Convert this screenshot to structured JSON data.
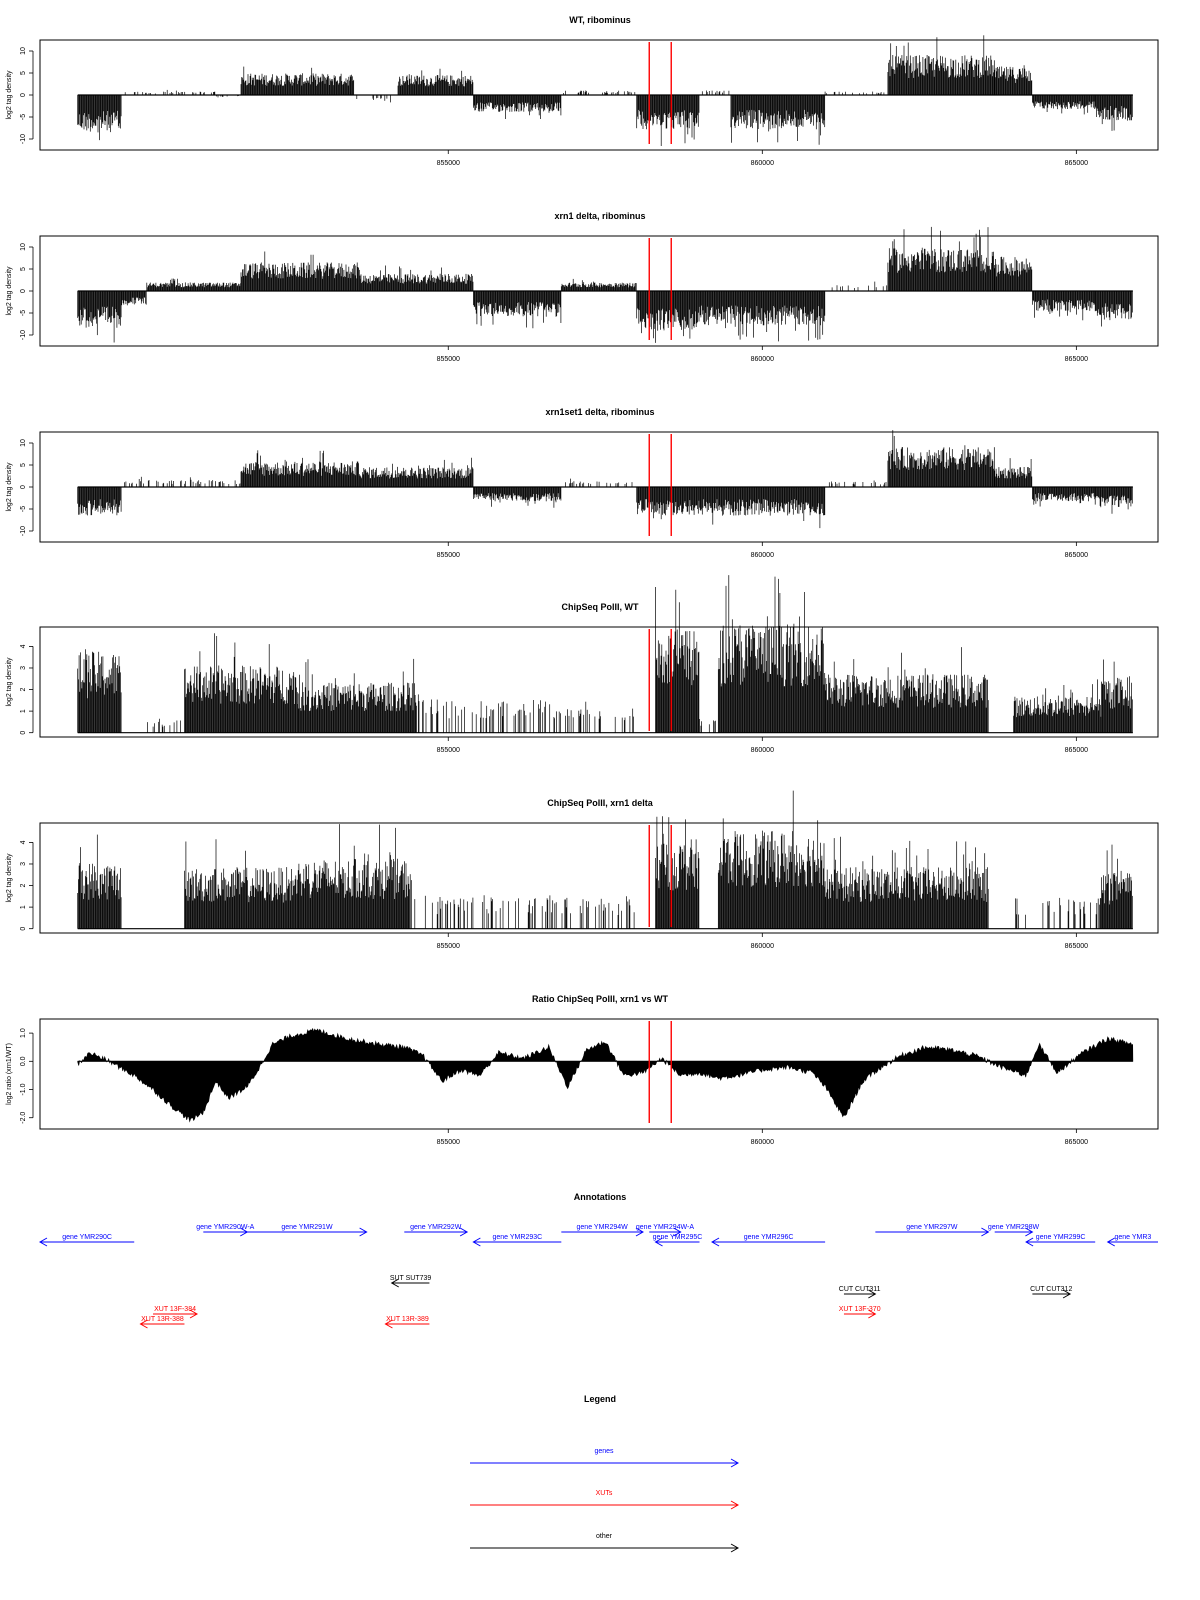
{
  "colors": {
    "gene": "#0000ff",
    "xut": "#ff0000",
    "other": "#000000",
    "marker": "#ff0000",
    "fill": "#000000"
  },
  "chart_data": [
    {
      "type": "bar",
      "title": "WT, ribominus",
      "ylabel": "log2 tag density",
      "xlim": [
        848500,
        866300
      ],
      "ylim": [
        -12.5,
        12.5
      ],
      "yticks": [
        10,
        5,
        0,
        -5,
        -10
      ],
      "xticks": [
        855000,
        860000,
        865000
      ],
      "xticklabels": [
        "855000",
        "860000",
        "865000"
      ],
      "markers": [
        858200,
        858550
      ],
      "regions": [
        {
          "x0": 849100,
          "x1": 849800,
          "y": -6.5
        },
        {
          "x0": 849800,
          "x1": 851300,
          "y": 0.6
        },
        {
          "x0": 851300,
          "x1": 851700,
          "y": -0.4
        },
        {
          "x0": 851700,
          "x1": 853500,
          "y": 3.8
        },
        {
          "x0": 853500,
          "x1": 854200,
          "y": -1.2
        },
        {
          "x0": 854200,
          "x1": 855400,
          "y": 3.5
        },
        {
          "x0": 855400,
          "x1": 856800,
          "y": -3.0
        },
        {
          "x0": 856800,
          "x1": 858000,
          "y": 0.8
        },
        {
          "x0": 858000,
          "x1": 859000,
          "y": -6.0
        },
        {
          "x0": 859000,
          "x1": 859500,
          "y": 0.8
        },
        {
          "x0": 859500,
          "x1": 861000,
          "y": -6.0
        },
        {
          "x0": 861000,
          "x1": 862000,
          "y": 0.6
        },
        {
          "x0": 862000,
          "x1": 863700,
          "y": 7.0
        },
        {
          "x0": 863700,
          "x1": 864300,
          "y": 5.0
        },
        {
          "x0": 864300,
          "x1": 865300,
          "y": -2.5
        },
        {
          "x0": 865300,
          "x1": 865900,
          "y": -4.5
        }
      ]
    },
    {
      "type": "bar",
      "title": "xrn1 delta, ribominus",
      "ylabel": "log2 tag density",
      "xlim": [
        848500,
        866300
      ],
      "ylim": [
        -12.5,
        12.5
      ],
      "yticks": [
        10,
        5,
        0,
        -5,
        -10
      ],
      "xticks": [
        855000,
        860000,
        865000
      ],
      "xticklabels": [
        "855000",
        "860000",
        "865000"
      ],
      "markers": [
        858200,
        858550
      ],
      "regions": [
        {
          "x0": 849100,
          "x1": 849800,
          "y": -6.5
        },
        {
          "x0": 849800,
          "x1": 850200,
          "y": -2.5
        },
        {
          "x0": 850200,
          "x1": 851700,
          "y": 1.5
        },
        {
          "x0": 851700,
          "x1": 853600,
          "y": 5.0
        },
        {
          "x0": 853600,
          "x1": 855400,
          "y": 3.0
        },
        {
          "x0": 855400,
          "x1": 856800,
          "y": -4.5
        },
        {
          "x0": 856800,
          "x1": 858000,
          "y": 1.5
        },
        {
          "x0": 858000,
          "x1": 859000,
          "y": -7.0
        },
        {
          "x0": 859000,
          "x1": 861000,
          "y": -6.0
        },
        {
          "x0": 861000,
          "x1": 862000,
          "y": 1.2
        },
        {
          "x0": 862000,
          "x1": 863700,
          "y": 7.5
        },
        {
          "x0": 863700,
          "x1": 864300,
          "y": 6.0
        },
        {
          "x0": 864300,
          "x1": 865300,
          "y": -3.5
        },
        {
          "x0": 865300,
          "x1": 865900,
          "y": -5.0
        }
      ]
    },
    {
      "type": "bar",
      "title": "xrn1set1 delta, ribominus",
      "ylabel": "log2 tag density",
      "xlim": [
        848500,
        866300
      ],
      "ylim": [
        -12.5,
        12.5
      ],
      "yticks": [
        10,
        5,
        0,
        -5,
        -10
      ],
      "xticks": [
        855000,
        860000,
        865000
      ],
      "xticklabels": [
        "855000",
        "860000",
        "865000"
      ],
      "markers": [
        858200,
        858550
      ],
      "regions": [
        {
          "x0": 849100,
          "x1": 849800,
          "y": -5.0
        },
        {
          "x0": 849800,
          "x1": 851700,
          "y": 1.2
        },
        {
          "x0": 851700,
          "x1": 853600,
          "y": 4.5
        },
        {
          "x0": 853600,
          "x1": 855400,
          "y": 3.5
        },
        {
          "x0": 855400,
          "x1": 856800,
          "y": -2.5
        },
        {
          "x0": 856800,
          "x1": 858000,
          "y": 1.0
        },
        {
          "x0": 858000,
          "x1": 859000,
          "y": -5.0
        },
        {
          "x0": 859000,
          "x1": 861000,
          "y": -5.0
        },
        {
          "x0": 861000,
          "x1": 862000,
          "y": 1.0
        },
        {
          "x0": 862000,
          "x1": 863700,
          "y": 7.0
        },
        {
          "x0": 863700,
          "x1": 864300,
          "y": 3.5
        },
        {
          "x0": 864300,
          "x1": 865300,
          "y": -2.5
        },
        {
          "x0": 865300,
          "x1": 865900,
          "y": -3.5
        }
      ]
    },
    {
      "type": "bar",
      "title": "ChipSeq PolII, WT",
      "ylabel": "log2 tag density",
      "xlim": [
        848500,
        866300
      ],
      "ylim": [
        -0.2,
        4.9
      ],
      "yticks": [
        4,
        3,
        2,
        1,
        0
      ],
      "xticks": [
        855000,
        860000,
        865000
      ],
      "xticklabels": [
        "855000",
        "860000",
        "865000"
      ],
      "markers": [
        858200,
        858550
      ],
      "regions": [
        {
          "x0": 849100,
          "x1": 849800,
          "y": 2.9
        },
        {
          "x0": 849800,
          "x1": 850200,
          "y": 0.0
        },
        {
          "x0": 850200,
          "x1": 850800,
          "y": 0.5
        },
        {
          "x0": 850800,
          "x1": 852600,
          "y": 2.4
        },
        {
          "x0": 852600,
          "x1": 854500,
          "y": 1.8
        },
        {
          "x0": 854500,
          "x1": 855400,
          "y": 1.2
        },
        {
          "x0": 855400,
          "x1": 856700,
          "y": 1.2
        },
        {
          "x0": 856700,
          "x1": 858000,
          "y": 0.9
        },
        {
          "x0": 858000,
          "x1": 858300,
          "y": 0.0
        },
        {
          "x0": 858300,
          "x1": 859000,
          "y": 3.7
        },
        {
          "x0": 859000,
          "x1": 859300,
          "y": 0.5
        },
        {
          "x0": 859300,
          "x1": 861000,
          "y": 3.9
        },
        {
          "x0": 861000,
          "x1": 863600,
          "y": 2.1
        },
        {
          "x0": 863600,
          "x1": 864000,
          "y": 0.0
        },
        {
          "x0": 864000,
          "x1": 865400,
          "y": 1.3
        },
        {
          "x0": 865400,
          "x1": 865900,
          "y": 2.0
        }
      ]
    },
    {
      "type": "bar",
      "title": "ChipSeq PolII, xrn1 delta",
      "ylabel": "log2 tag density",
      "xlim": [
        848500,
        866300
      ],
      "ylim": [
        -0.2,
        4.9
      ],
      "yticks": [
        4,
        3,
        2,
        1,
        0
      ],
      "xticks": [
        855000,
        860000,
        865000
      ],
      "xticklabels": [
        "855000",
        "860000",
        "865000"
      ],
      "markers": [
        858200,
        858550
      ],
      "regions": [
        {
          "x0": 849100,
          "x1": 849800,
          "y": 2.4
        },
        {
          "x0": 849800,
          "x1": 850800,
          "y": 0.0
        },
        {
          "x0": 850800,
          "x1": 852600,
          "y": 2.2
        },
        {
          "x0": 852600,
          "x1": 854400,
          "y": 2.5
        },
        {
          "x0": 854400,
          "x1": 856800,
          "y": 1.2
        },
        {
          "x0": 856800,
          "x1": 858000,
          "y": 1.1
        },
        {
          "x0": 858000,
          "x1": 858300,
          "y": 0.0
        },
        {
          "x0": 858300,
          "x1": 859000,
          "y": 3.2
        },
        {
          "x0": 859000,
          "x1": 859300,
          "y": 0.0
        },
        {
          "x0": 859300,
          "x1": 861000,
          "y": 3.5
        },
        {
          "x0": 861000,
          "x1": 863600,
          "y": 2.2
        },
        {
          "x0": 863600,
          "x1": 864000,
          "y": 0.0
        },
        {
          "x0": 864000,
          "x1": 865400,
          "y": 1.1
        },
        {
          "x0": 865400,
          "x1": 865900,
          "y": 2.0
        }
      ]
    },
    {
      "type": "area",
      "title": "Ratio ChipSeq PolII, xrn1 vs WT",
      "ylabel": "log2 ratio (xrn1/WT)",
      "xlim": [
        848500,
        866300
      ],
      "ylim": [
        -2.4,
        1.5
      ],
      "yticks": [
        1.0,
        0.0,
        -1.0,
        -2.0
      ],
      "yticklabels": [
        "1.0",
        "0.0",
        "-1.0",
        "-2.0"
      ],
      "xticks": [
        855000,
        860000,
        865000
      ],
      "xticklabels": [
        "855000",
        "860000",
        "865000"
      ],
      "markers": [
        858200,
        858550
      ],
      "x": [
        849100,
        849300,
        849600,
        850000,
        850300,
        850600,
        850900,
        851100,
        851300,
        851500,
        851800,
        852000,
        852200,
        852500,
        852900,
        853400,
        853900,
        854300,
        854600,
        854900,
        855200,
        855500,
        855800,
        856200,
        856600,
        856900,
        857200,
        857500,
        857800,
        858100,
        858400,
        858700,
        859000,
        859300,
        859600,
        860000,
        860400,
        860800,
        861000,
        861300,
        861600,
        861900,
        862200,
        862600,
        863000,
        863400,
        863800,
        864200,
        864400,
        864700,
        865100,
        865500,
        865900
      ],
      "y": [
        -0.1,
        0.3,
        0.0,
        -0.5,
        -1.0,
        -1.6,
        -2.1,
        -1.8,
        -0.7,
        -1.3,
        -0.9,
        -0.2,
        0.6,
        0.9,
        1.1,
        0.8,
        0.6,
        0.5,
        0.2,
        -0.7,
        -0.3,
        -0.5,
        0.3,
        0.1,
        0.5,
        -0.9,
        0.4,
        0.7,
        -0.5,
        -0.4,
        0.1,
        -0.5,
        -0.4,
        -0.6,
        -0.5,
        -0.3,
        -0.2,
        -0.4,
        -0.9,
        -2.0,
        -0.7,
        -0.2,
        0.2,
        0.5,
        0.4,
        0.2,
        -0.2,
        -0.5,
        0.6,
        -0.4,
        0.3,
        0.8,
        0.6
      ]
    }
  ],
  "annotations": {
    "title": "Annotations",
    "genes": [
      {
        "label": "gene YMR290W-A",
        "x0": 851100,
        "x1": 851800,
        "row": 0
      },
      {
        "label": "gene YMR290C",
        "x0": 848500,
        "x1": 850000,
        "row": 1
      },
      {
        "label": "gene YMR291W",
        "x0": 851800,
        "x1": 853700,
        "row": 0
      },
      {
        "label": "gene YMR292W",
        "x0": 854300,
        "x1": 855300,
        "row": 0
      },
      {
        "label": "gene YMR293C",
        "x0": 855400,
        "x1": 856800,
        "row": 1
      },
      {
        "label": "gene YMR294W",
        "x0": 856800,
        "x1": 858100,
        "row": 0
      },
      {
        "label": "gene YMR294W-A",
        "x0": 858200,
        "x1": 858700,
        "row": 0
      },
      {
        "label": "gene YMR295C",
        "x0": 858300,
        "x1": 859000,
        "row": 1
      },
      {
        "label": "gene YMR296C",
        "x0": 859200,
        "x1": 861000,
        "row": 1
      },
      {
        "label": "gene YMR297W",
        "x0": 861800,
        "x1": 863600,
        "row": 0
      },
      {
        "label": "gene YMR298W",
        "x0": 863700,
        "x1": 864300,
        "row": 0
      },
      {
        "label": "gene YMR299C",
        "x0": 864200,
        "x1": 865300,
        "row": 1
      },
      {
        "label": "gene YMR3",
        "x0": 865500,
        "x1": 866300,
        "row": 1
      }
    ],
    "others": [
      {
        "label": "SUT SUT739",
        "x0": 854100,
        "x1": 854700,
        "row": 0,
        "dir": -1
      },
      {
        "label": "CUT CUT311",
        "x0": 861300,
        "x1": 861800,
        "row": 1,
        "dir": 1
      },
      {
        "label": "CUT CUT312",
        "x0": 864300,
        "x1": 864900,
        "row": 1,
        "dir": 1
      }
    ],
    "xuts": [
      {
        "label": "XUT 13F-384",
        "x0": 850300,
        "x1": 851000,
        "row": 0,
        "dir": 1
      },
      {
        "label": "XUT 13R-388",
        "x0": 850100,
        "x1": 850800,
        "row": 1,
        "dir": -1
      },
      {
        "label": "XUT 13R-389",
        "x0": 854000,
        "x1": 854700,
        "row": 1,
        "dir": -1
      },
      {
        "label": "XUT 13F-370",
        "x0": 861300,
        "x1": 861800,
        "row": 0,
        "dir": 1
      }
    ]
  },
  "legend": {
    "title": "Legend",
    "items": [
      {
        "label": "genes",
        "color": "#0000ff"
      },
      {
        "label": "XUTs",
        "color": "#ff0000"
      },
      {
        "label": "other",
        "color": "#000000"
      }
    ]
  }
}
